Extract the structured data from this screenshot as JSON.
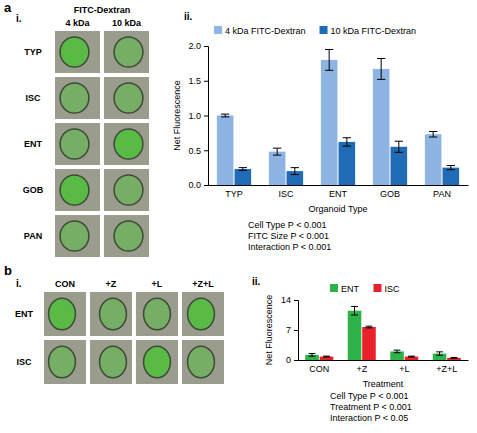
{
  "chart_data": [
    {
      "type": "bar",
      "legend": "top",
      "grid": false,
      "xlabel": "Organoid Type",
      "ylabel": "Net Fluorescence",
      "categories": [
        "TYP",
        "ISC",
        "ENT",
        "GOB",
        "PAN"
      ],
      "series": [
        {
          "name": "4 kDa FITC-Dextran",
          "color": "#8db4e2",
          "values": [
            1.0,
            0.48,
            1.8,
            1.67,
            0.73
          ],
          "errors": [
            0.02,
            0.05,
            0.15,
            0.15,
            0.04
          ]
        },
        {
          "name": "10 kDa FITC-Dextran",
          "color": "#1f6bb5",
          "values": [
            0.23,
            0.2,
            0.62,
            0.55,
            0.25
          ],
          "errors": [
            0.02,
            0.05,
            0.06,
            0.08,
            0.03
          ]
        }
      ],
      "ylim": [
        0,
        2.0
      ],
      "yticks": [
        {
          "value": 0,
          "label": "0.0"
        },
        0.5,
        {
          "value": 1,
          "label": "1.0"
        },
        1.5,
        {
          "value": 2,
          "label": "2.0"
        }
      ],
      "annotations": [
        "Cell Type P < 0.001",
        "FITC Size P < 0.001",
        "Interaction P < 0.001"
      ]
    },
    {
      "type": "bar",
      "legend": "top",
      "grid": false,
      "xlabel": "Treatment",
      "ylabel": "Net Fluorescence",
      "categories": [
        "CON",
        "+Z",
        "+L",
        "+Z+L"
      ],
      "series": [
        {
          "name": "ENT",
          "color": "#2db34a",
          "values": [
            1.2,
            11.5,
            2.0,
            1.5
          ],
          "errors": [
            0.3,
            1.0,
            0.3,
            0.4
          ]
        },
        {
          "name": "ISC",
          "color": "#e8212a",
          "values": [
            0.8,
            7.7,
            0.8,
            0.5
          ],
          "errors": [
            0.1,
            0.2,
            0.1,
            0.1
          ]
        }
      ],
      "ylim": [
        0,
        14
      ],
      "yticks": [
        0,
        7,
        14
      ],
      "annotations": [
        "Cell Type P < 0.001",
        "Treatment P < 0.001",
        "Interaction P < 0.05"
      ]
    }
  ],
  "figure": {
    "panels": [
      {
        "letter": "a",
        "image_label": "i.",
        "image_title": "FITC-Dextran",
        "image_columns": [
          "4 kDa",
          "10 kDa"
        ],
        "image_rows": [
          "TYP",
          "ISC",
          "ENT",
          "GOB",
          "PAN"
        ],
        "chart_label": "ii."
      },
      {
        "letter": "b",
        "image_label": "i.",
        "image_columns": [
          "CON",
          "+Z",
          "+L",
          "+Z+L"
        ],
        "image_rows": [
          "ENT",
          "ISC"
        ],
        "chart_label": "ii."
      }
    ]
  }
}
